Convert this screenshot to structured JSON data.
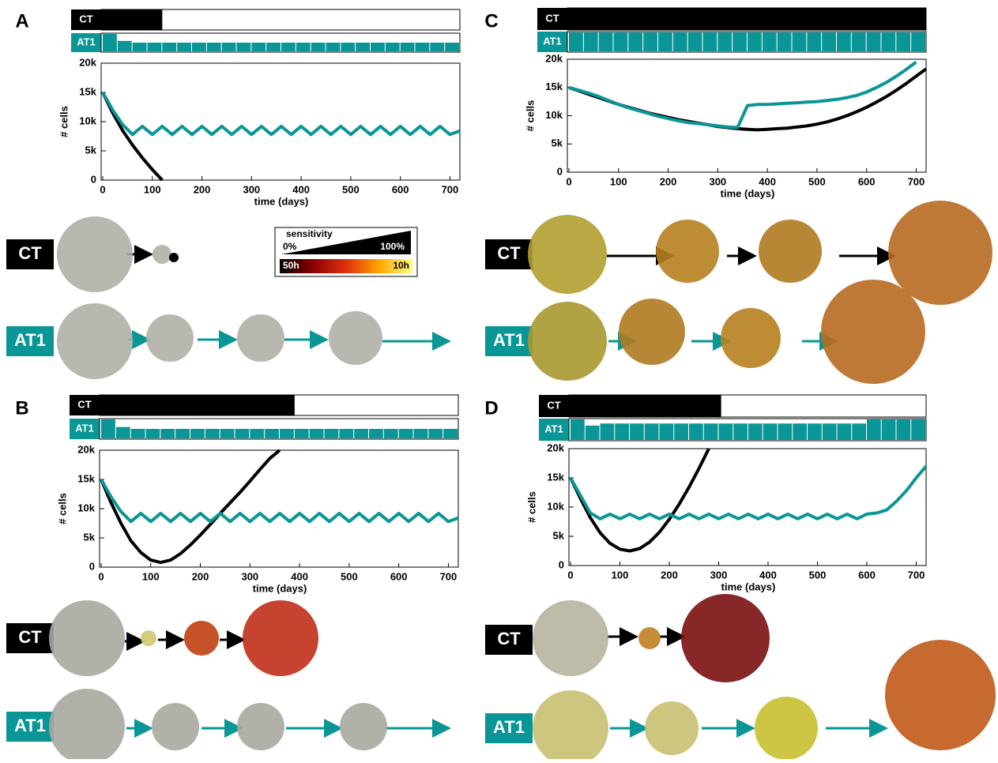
{
  "panels": [
    {
      "letter": "A",
      "rows": [
        "CT",
        "AT1"
      ]
    },
    {
      "letter": "B",
      "rows": [
        "CT",
        "AT1"
      ]
    },
    {
      "letter": "C",
      "rows": [
        "CT",
        "AT1"
      ]
    },
    {
      "letter": "D",
      "rows": [
        "CT",
        "AT1"
      ]
    }
  ],
  "legend": {
    "title": "sensitivity",
    "low": "0%",
    "high": "100%",
    "slow": "50h",
    "fast": "10h"
  },
  "chart_data": [
    {
      "type": "line",
      "x_label": "time (days)",
      "y_label": "# cells",
      "xlim": [
        0,
        720
      ],
      "ylim": [
        0,
        20000
      ],
      "xticks": [
        0,
        100,
        200,
        300,
        400,
        500,
        600,
        700
      ],
      "yticks": [
        0,
        {
          "value": 5000,
          "label": "5k"
        },
        {
          "value": 10000,
          "label": "10k"
        },
        {
          "value": 15000,
          "label": "15k"
        },
        {
          "value": 20000,
          "label": "20k"
        }
      ],
      "x": [
        0,
        20,
        40,
        60,
        80,
        100,
        120,
        140,
        160,
        180,
        200,
        220,
        240,
        260,
        280,
        300,
        320,
        340,
        360,
        380,
        400,
        420,
        440,
        460,
        480,
        500,
        520,
        540,
        560,
        580,
        600,
        620,
        640,
        660,
        680,
        700,
        720
      ],
      "series": [
        {
          "name": "CT",
          "color": "#000000",
          "dose_end": 120,
          "values": [
            15000,
            11500,
            8500,
            6000,
            3800,
            1800,
            0,
            null,
            null,
            null,
            null,
            null,
            null,
            null,
            null,
            null,
            null,
            null,
            null,
            null,
            null,
            null,
            null,
            null,
            null,
            null,
            null,
            null,
            null,
            null,
            null,
            null,
            null,
            null,
            null,
            null,
            null
          ]
        },
        {
          "name": "AT1",
          "color": "#0a9696",
          "doses": [
            1,
            0.6,
            0.5,
            0.5,
            0.5,
            0.5,
            0.5,
            0.5,
            0.5,
            0.5,
            0.5,
            0.5,
            0.5,
            0.5,
            0.5,
            0.5,
            0.5,
            0.5,
            0.5,
            0.5,
            0.5,
            0.5,
            0.5,
            0.5
          ],
          "values": [
            15000,
            12000,
            9500,
            7800,
            9200,
            7800,
            9200,
            7800,
            9200,
            7800,
            9200,
            7800,
            9200,
            7800,
            9200,
            7800,
            9200,
            7800,
            9200,
            7800,
            9200,
            7800,
            9200,
            7800,
            9200,
            7800,
            9200,
            7800,
            9200,
            7800,
            9200,
            7800,
            9200,
            7800,
            9200,
            7800,
            8400
          ]
        }
      ]
    },
    {
      "type": "line",
      "x_label": "time (days)",
      "y_label": "# cells",
      "xlim": [
        0,
        720
      ],
      "ylim": [
        0,
        20000
      ],
      "xticks": [
        0,
        100,
        200,
        300,
        400,
        500,
        600,
        700
      ],
      "yticks": [
        0,
        {
          "value": 5000,
          "label": "5k"
        },
        {
          "value": 10000,
          "label": "10k"
        },
        {
          "value": 15000,
          "label": "15k"
        },
        {
          "value": 20000,
          "label": "20k"
        }
      ],
      "x": [
        0,
        20,
        40,
        60,
        80,
        100,
        120,
        140,
        160,
        180,
        200,
        220,
        240,
        260,
        280,
        300,
        320,
        340,
        360,
        380,
        400,
        420,
        440,
        460,
        480,
        500,
        520,
        540,
        560,
        580,
        600,
        620,
        640,
        660,
        680,
        700,
        720
      ],
      "series": [
        {
          "name": "CT",
          "color": "#000000",
          "dose_end": 390,
          "values": [
            15000,
            11000,
            7500,
            4500,
            2500,
            1200,
            800,
            1200,
            2300,
            3800,
            5500,
            7300,
            9200,
            11000,
            12800,
            14700,
            16700,
            18600,
            20000,
            null,
            null,
            null,
            null,
            null,
            null,
            null,
            null,
            null,
            null,
            null,
            null,
            null,
            null,
            null,
            null,
            null,
            null
          ]
        },
        {
          "name": "AT1",
          "color": "#0a9696",
          "doses": [
            1,
            0.6,
            0.5,
            0.5,
            0.5,
            0.5,
            0.5,
            0.5,
            0.5,
            0.5,
            0.5,
            0.5,
            0.5,
            0.5,
            0.5,
            0.5,
            0.5,
            0.5,
            0.5,
            0.5,
            0.5,
            0.5,
            0.5,
            0.5
          ],
          "values": [
            15000,
            12000,
            9500,
            7800,
            9200,
            7800,
            9200,
            7800,
            9200,
            7800,
            9200,
            7800,
            9200,
            7800,
            9200,
            7800,
            9200,
            7800,
            9200,
            7800,
            9200,
            7800,
            9200,
            7800,
            9200,
            7800,
            9200,
            7800,
            9200,
            7800,
            9200,
            7800,
            9200,
            7800,
            9200,
            7800,
            8400
          ]
        }
      ]
    },
    {
      "type": "line",
      "x_label": "time (days)",
      "y_label": "# cells",
      "xlim": [
        0,
        720
      ],
      "ylim": [
        0,
        20000
      ],
      "xticks": [
        0,
        100,
        200,
        300,
        400,
        500,
        600,
        700
      ],
      "yticks": [
        0,
        {
          "value": 5000,
          "label": "5k"
        },
        {
          "value": 10000,
          "label": "10k"
        },
        {
          "value": 15000,
          "label": "15k"
        },
        {
          "value": 20000,
          "label": "20k"
        }
      ],
      "x": [
        0,
        20,
        40,
        60,
        80,
        100,
        120,
        140,
        160,
        180,
        200,
        220,
        240,
        260,
        280,
        300,
        320,
        340,
        360,
        380,
        400,
        420,
        440,
        460,
        480,
        500,
        520,
        540,
        560,
        580,
        600,
        620,
        640,
        660,
        680,
        700,
        720
      ],
      "series": [
        {
          "name": "CT",
          "color": "#000000",
          "dose_end": 720,
          "values": [
            15000,
            14400,
            13800,
            13200,
            12600,
            12000,
            11500,
            11000,
            10500,
            10100,
            9700,
            9300,
            9000,
            8700,
            8400,
            8100,
            7900,
            7700,
            7600,
            7500,
            7600,
            7700,
            7800,
            8000,
            8200,
            8500,
            8900,
            9400,
            10000,
            10700,
            11500,
            12400,
            13400,
            14500,
            15700,
            17000,
            18300
          ]
        },
        {
          "name": "AT1",
          "color": "#0a9696",
          "doses": [
            1,
            1,
            1,
            1,
            1,
            1,
            1,
            1,
            1,
            1,
            1,
            1,
            1,
            1,
            1,
            1,
            1,
            1,
            1,
            1,
            1,
            1,
            1,
            1
          ],
          "values": [
            15000,
            14500,
            14000,
            13400,
            12700,
            12000,
            11400,
            10900,
            10400,
            9900,
            9500,
            9100,
            8800,
            8600,
            8400,
            8200,
            8000,
            7900,
            11800,
            12000,
            12000,
            12100,
            12200,
            12300,
            12400,
            12500,
            12700,
            12900,
            13200,
            13600,
            14200,
            15000,
            15900,
            17000,
            18200,
            19500,
            null
          ]
        }
      ]
    },
    {
      "type": "line",
      "x_label": "time (days)",
      "y_label": "# cells",
      "xlim": [
        0,
        720
      ],
      "ylim": [
        0,
        20000
      ],
      "xticks": [
        0,
        100,
        200,
        300,
        400,
        500,
        600,
        700
      ],
      "yticks": [
        0,
        {
          "value": 5000,
          "label": "5k"
        },
        {
          "value": 10000,
          "label": "10k"
        },
        {
          "value": 15000,
          "label": "15k"
        },
        {
          "value": 20000,
          "label": "20k"
        }
      ],
      "x": [
        0,
        20,
        40,
        60,
        80,
        100,
        120,
        140,
        160,
        180,
        200,
        220,
        240,
        260,
        280,
        300,
        320,
        340,
        360,
        380,
        400,
        420,
        440,
        460,
        480,
        500,
        520,
        540,
        560,
        580,
        600,
        620,
        640,
        660,
        680,
        700,
        720
      ],
      "series": [
        {
          "name": "CT",
          "color": "#000000",
          "dose_end": 305,
          "values": [
            15000,
            11500,
            8200,
            5600,
            3800,
            2800,
            2500,
            2900,
            4000,
            5700,
            7900,
            10500,
            13400,
            16600,
            20000,
            null,
            null,
            null,
            null,
            null,
            null,
            null,
            null,
            null,
            null,
            null,
            null,
            null,
            null,
            null,
            null,
            null,
            null,
            null,
            null,
            null,
            null
          ]
        },
        {
          "name": "AT1",
          "color": "#0a9696",
          "doses": [
            1,
            0.7,
            0.8,
            0.8,
            0.8,
            0.8,
            0.8,
            0.8,
            0.8,
            0.8,
            0.8,
            0.8,
            0.8,
            0.8,
            0.8,
            0.8,
            0.8,
            0.8,
            0.8,
            0.8,
            1,
            1,
            1,
            1
          ],
          "values": [
            15000,
            12000,
            9000,
            8000,
            8800,
            8000,
            8800,
            8000,
            8800,
            8000,
            8800,
            8000,
            8800,
            8000,
            8800,
            8000,
            8800,
            8000,
            8800,
            8000,
            8800,
            8000,
            8800,
            8000,
            8800,
            8000,
            8800,
            8000,
            8800,
            8000,
            8800,
            9000,
            9500,
            11000,
            12800,
            15000,
            17000
          ]
        }
      ]
    }
  ]
}
